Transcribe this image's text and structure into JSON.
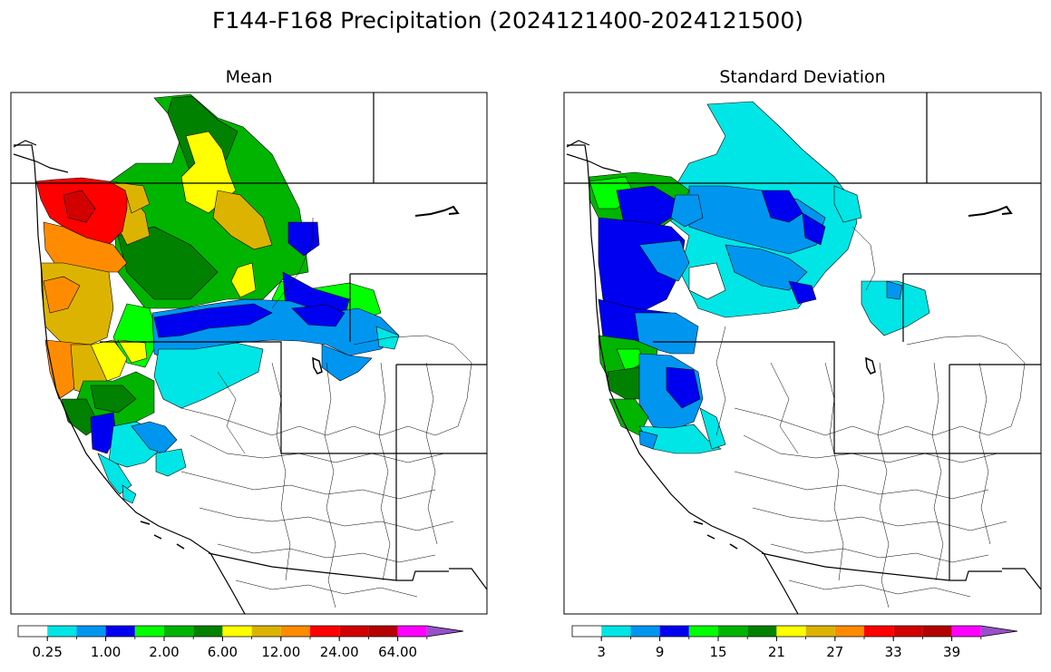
{
  "figure": {
    "title": "F144-F168 Precipitation (2024121400-2024121500)"
  },
  "panels": [
    {
      "id": "mean",
      "title": "Mean",
      "colorbar": {
        "colors": [
          "#ffffff",
          "#00e5e5",
          "#0096f0",
          "#0000f0",
          "#00ff00",
          "#00b400",
          "#008200",
          "#ffff00",
          "#dcb400",
          "#ff8c00",
          "#ff0000",
          "#d20000",
          "#b40000",
          "#ff00ff",
          "#9650c8"
        ],
        "tick_labels": [
          "0.25",
          "1.00",
          "2.00",
          "6.00",
          "12.00",
          "24.00",
          "64.00"
        ],
        "extend": "max"
      }
    },
    {
      "id": "std",
      "title": "Standard Deviation",
      "colorbar": {
        "colors": [
          "#ffffff",
          "#00e5e5",
          "#0096f0",
          "#0000f0",
          "#00ff00",
          "#00b400",
          "#008200",
          "#ffff00",
          "#dcb400",
          "#ff8c00",
          "#ff0000",
          "#d20000",
          "#b40000",
          "#ff00ff",
          "#9650c8"
        ],
        "tick_labels": [
          "3",
          "9",
          "15",
          "21",
          "27",
          "33",
          "39"
        ],
        "extend": "max"
      }
    }
  ]
}
